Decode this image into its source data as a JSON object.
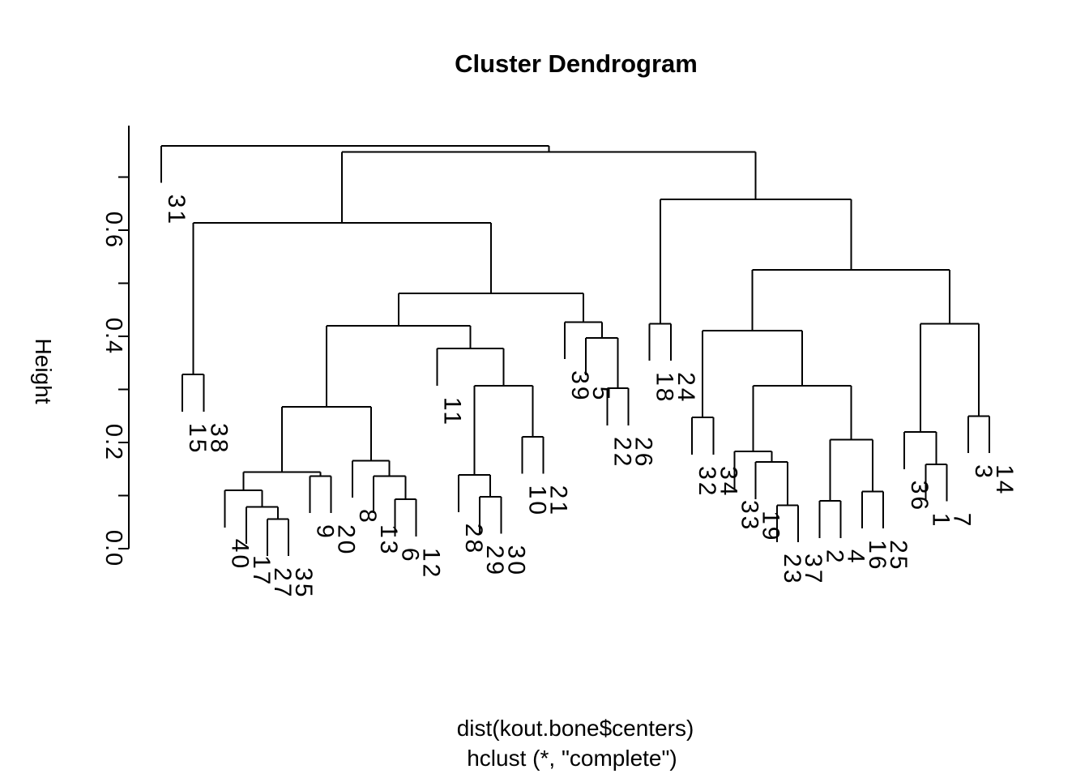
{
  "chart_data": {
    "type": "dendrogram",
    "title": "Cluster Dendrogram",
    "ylabel": "Height",
    "xlabel_line1": "dist(kout.bone$centers)",
    "xlabel_line2": "hclust (*, \"complete\")",
    "line_color": "#000000",
    "background_color": "#ffffff",
    "ylim": [
      0.0,
      0.8
    ],
    "y_axis_ticks": [
      {
        "value": 0.0,
        "label": "0.0"
      },
      {
        "value": 0.1,
        "label": ""
      },
      {
        "value": 0.2,
        "label": "0.2"
      },
      {
        "value": 0.3,
        "label": ""
      },
      {
        "value": 0.4,
        "label": "0.4"
      },
      {
        "value": 0.5,
        "label": ""
      },
      {
        "value": 0.6,
        "label": "0.6"
      },
      {
        "value": 0.7,
        "label": ""
      }
    ],
    "hang": 0.07,
    "leaf_order": [
      "31",
      "15",
      "38",
      "40",
      "17",
      "27",
      "35",
      "9",
      "20",
      "8",
      "13",
      "6",
      "12",
      "11",
      "28",
      "29",
      "30",
      "10",
      "21",
      "39",
      "5",
      "22",
      "26",
      "18",
      "24",
      "32",
      "34",
      "33",
      "19",
      "23",
      "37",
      "2",
      "4",
      "16",
      "25",
      "36",
      "1",
      "7",
      "3",
      "14"
    ],
    "merge_tree": {
      "h": 0.759,
      "children": [
        "31",
        {
          "h": 0.747,
          "children": [
            {
              "h": 0.614,
              "children": [
                {
                  "h": 0.328,
                  "children": [
                    "15",
                    "38"
                  ]
                },
                {
                  "h": 0.481,
                  "children": [
                    {
                      "h": 0.42,
                      "children": [
                        {
                          "h": 0.267,
                          "children": [
                            {
                              "h": 0.144,
                              "children": [
                                {
                                  "h": 0.11,
                                  "children": [
                                    "40",
                                    {
                                      "h": 0.079,
                                      "children": [
                                        "17",
                                        {
                                          "h": 0.056,
                                          "children": [
                                            "27",
                                            "35"
                                          ]
                                        }
                                      ]
                                    }
                                  ]
                                },
                                {
                                  "h": 0.137,
                                  "children": [
                                    "9",
                                    "20"
                                  ]
                                }
                              ]
                            },
                            {
                              "h": 0.166,
                              "children": [
                                "8",
                                {
                                  "h": 0.137,
                                  "children": [
                                    "13",
                                    {
                                      "h": 0.093,
                                      "children": [
                                        "6",
                                        "12"
                                      ]
                                    }
                                  ]
                                }
                              ]
                            }
                          ]
                        },
                        {
                          "h": 0.377,
                          "children": [
                            "11",
                            {
                              "h": 0.307,
                              "children": [
                                {
                                  "h": 0.139,
                                  "children": [
                                    "28",
                                    {
                                      "h": 0.098,
                                      "children": [
                                        "29",
                                        "30"
                                      ]
                                    }
                                  ]
                                },
                                {
                                  "h": 0.211,
                                  "children": [
                                    "10",
                                    "21"
                                  ]
                                }
                              ]
                            }
                          ]
                        }
                      ]
                    },
                    {
                      "h": 0.427,
                      "children": [
                        "39",
                        {
                          "h": 0.397,
                          "children": [
                            "5",
                            {
                              "h": 0.302,
                              "children": [
                                "22",
                                "26"
                              ]
                            }
                          ]
                        }
                      ]
                    }
                  ]
                }
              ]
            },
            {
              "h": 0.658,
              "children": [
                {
                  "h": 0.424,
                  "children": [
                    "18",
                    "24"
                  ]
                },
                {
                  "h": 0.525,
                  "children": [
                    {
                      "h": 0.411,
                      "children": [
                        {
                          "h": 0.247,
                          "children": [
                            "32",
                            "34"
                          ]
                        },
                        {
                          "h": 0.307,
                          "children": [
                            {
                              "h": 0.183,
                              "children": [
                                "33",
                                {
                                  "h": 0.163,
                                  "children": [
                                    "19",
                                    {
                                      "h": 0.082,
                                      "children": [
                                        "23",
                                        "37"
                                      ]
                                    }
                                  ]
                                }
                              ]
                            },
                            {
                              "h": 0.205,
                              "children": [
                                {
                                  "h": 0.09,
                                  "children": [
                                    "2",
                                    "4"
                                  ]
                                },
                                {
                                  "h": 0.108,
                                  "children": [
                                    "16",
                                    "25"
                                  ]
                                }
                              ]
                            }
                          ]
                        }
                      ]
                    },
                    {
                      "h": 0.424,
                      "children": [
                        {
                          "h": 0.22,
                          "children": [
                            "36",
                            {
                              "h": 0.159,
                              "children": [
                                "1",
                                "7"
                              ]
                            }
                          ]
                        },
                        {
                          "h": 0.25,
                          "children": [
                            "3",
                            "14"
                          ]
                        }
                      ]
                    }
                  ]
                }
              ]
            }
          ]
        }
      ]
    }
  }
}
